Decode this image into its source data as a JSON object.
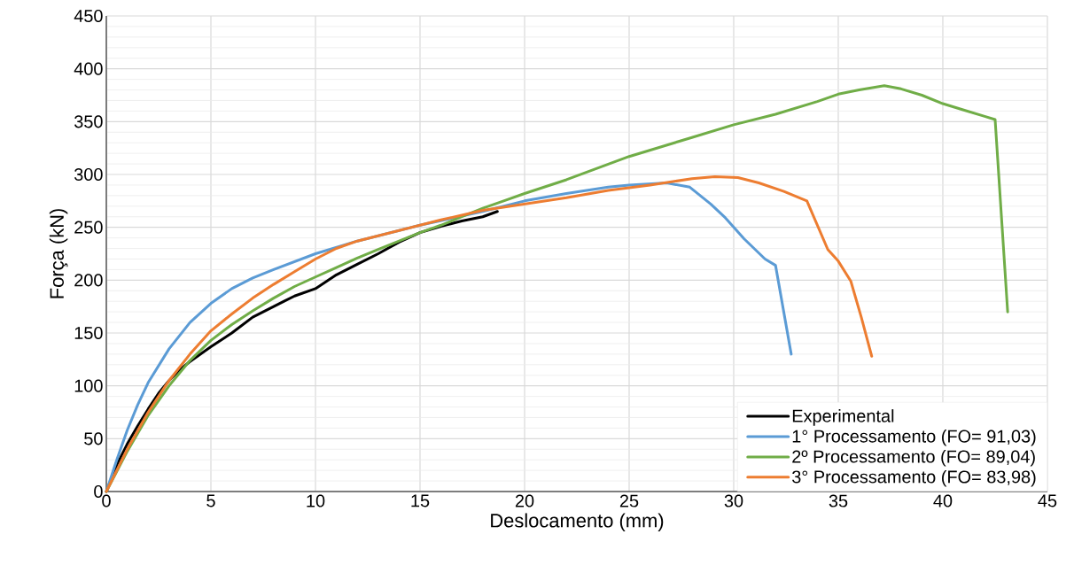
{
  "chart_data": {
    "type": "line",
    "xlabel": "Deslocamento (mm)",
    "ylabel": "Força (kN)",
    "xlim": [
      0,
      45
    ],
    "ylim": [
      0,
      450
    ],
    "xticks": [
      0,
      5,
      10,
      15,
      20,
      25,
      30,
      35,
      40,
      45
    ],
    "yticks": [
      0,
      50,
      100,
      150,
      200,
      250,
      300,
      350,
      400,
      450
    ],
    "grid": true,
    "legend": "bottom right",
    "series": [
      {
        "name": "Experimental",
        "color": "#000000",
        "x": [
          0,
          0.5,
          1,
          1.5,
          2,
          2.5,
          3,
          3.5,
          4,
          5,
          6,
          7,
          8,
          8.5,
          9,
          10,
          11,
          12,
          13,
          14,
          15,
          16,
          17,
          18,
          18.7
        ],
        "values": [
          0,
          25,
          45,
          62,
          78,
          93,
          105,
          115,
          123,
          137,
          150,
          165,
          175,
          180,
          185,
          192,
          205,
          215,
          225,
          236,
          245,
          251,
          256,
          260,
          265
        ]
      },
      {
        "name": "1° Processamento (FO= 91,03)",
        "color": "#5b9bd5",
        "x": [
          0,
          0.5,
          1,
          1.5,
          2,
          3,
          4,
          5,
          6,
          7,
          8,
          10,
          12,
          15,
          18,
          20,
          22,
          24,
          25,
          26.8,
          27.9,
          28.9,
          29.6,
          30.5,
          31.5,
          32,
          32.75
        ],
        "values": [
          0,
          30,
          58,
          82,
          103,
          135,
          160,
          178,
          192,
          202,
          210,
          225,
          237,
          252,
          265,
          275,
          282,
          288,
          290,
          292,
          288,
          272,
          259,
          239,
          220,
          214,
          130
        ]
      },
      {
        "name": "2º Processamento (FO= 89,04)",
        "color": "#70ad47",
        "x": [
          0,
          1,
          2,
          3,
          4,
          5,
          6,
          7,
          8,
          9,
          10,
          11,
          12,
          13,
          14,
          15,
          16,
          17,
          18,
          19,
          20,
          22,
          25,
          28,
          30,
          32,
          34,
          35,
          36,
          37.2,
          38,
          39,
          40,
          41,
          42,
          42.5,
          43.1
        ],
        "values": [
          0,
          38,
          72,
          100,
          124,
          143,
          158,
          171,
          183,
          194,
          203,
          212,
          221,
          229,
          237,
          245,
          252,
          260,
          268,
          275,
          282,
          295,
          317,
          335,
          347,
          357,
          369,
          376,
          380,
          384,
          381,
          375,
          367,
          361,
          355,
          352,
          170
        ]
      },
      {
        "name": "3° Processamento (FO= 83,98)",
        "color": "#ed7d31",
        "x": [
          0,
          1,
          2,
          3,
          4,
          5,
          6,
          7,
          8,
          9,
          10,
          11,
          12,
          14,
          16,
          18,
          20,
          22,
          24,
          26,
          28,
          29.1,
          30.2,
          31.2,
          32.4,
          33.5,
          34.5,
          35,
          35.6,
          36.1,
          36.6
        ],
        "values": [
          0,
          40,
          75,
          105,
          130,
          152,
          168,
          183,
          196,
          208,
          220,
          230,
          237,
          247,
          257,
          266,
          272,
          278,
          285,
          290,
          296,
          298,
          297,
          292,
          284,
          275,
          229,
          218,
          199,
          165,
          128
        ]
      }
    ]
  }
}
